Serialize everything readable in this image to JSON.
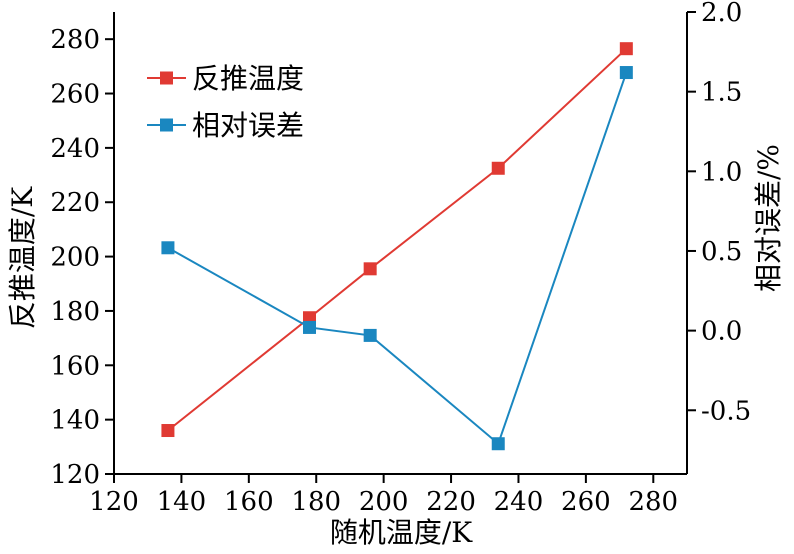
{
  "chart_data": {
    "type": "line",
    "xlabel": "随机温度/K",
    "ylabel": "反推温度/K",
    "y2label": "相对误差/%",
    "xlim": [
      120,
      290
    ],
    "ylim": [
      120,
      290
    ],
    "y2lim": [
      -0.9,
      2.0
    ],
    "xticks": [
      "120",
      "140",
      "160",
      "180",
      "200",
      "220",
      "240",
      "260",
      "280"
    ],
    "yticks": [
      "120",
      "140",
      "160",
      "180",
      "200",
      "220",
      "240",
      "260",
      "280"
    ],
    "y2ticks": [
      "-0.5",
      "0.0",
      "0.5",
      "1.0",
      "1.5",
      "2.0"
    ],
    "legend_position": "top-left",
    "grid": false,
    "series": [
      {
        "name": "反推温度",
        "axis": "left",
        "color": "#e03a33",
        "marker": "square",
        "x": [
          136,
          178,
          196,
          234,
          272
        ],
        "values": [
          136,
          177.5,
          195.5,
          232.5,
          276.5
        ]
      },
      {
        "name": "相对误差",
        "axis": "right",
        "color": "#1a87c0",
        "marker": "square",
        "x": [
          136,
          178,
          196,
          234,
          272
        ],
        "values": [
          0.52,
          0.02,
          -0.03,
          -0.71,
          1.62
        ]
      }
    ]
  }
}
